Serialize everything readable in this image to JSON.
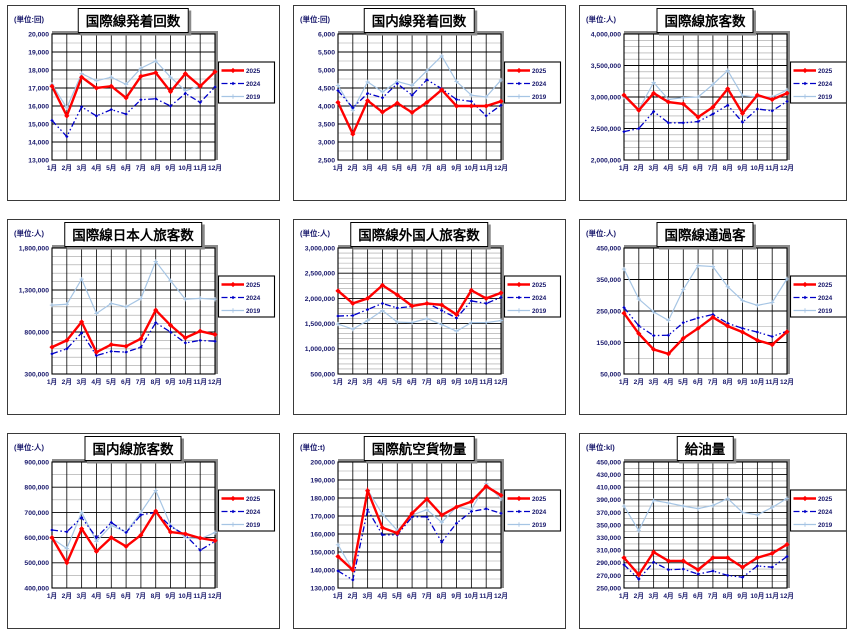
{
  "legend_labels": [
    "2025",
    "2024",
    "2019"
  ],
  "series_styles": {
    "2025": {
      "color": "#ff0000",
      "dash": "",
      "width": 2.4,
      "marker": "diamond"
    },
    "2024": {
      "color": "#0000c8",
      "dash": "6 2.5 1.5 2.5 1.5 2.5",
      "width": 1.3,
      "marker": "diamond-small"
    },
    "2019": {
      "color": "#a6c5e4",
      "dash": "",
      "width": 1.2,
      "marker": "plus"
    }
  },
  "grid_colors": {
    "major": "#000000",
    "minor": "#a0a0a0",
    "frame_shadow": "#8c8c8c"
  },
  "text_colors": {
    "axis": "#17176b",
    "title": "#000000"
  },
  "chart_data": [
    {
      "type": "line",
      "title": "国際線発着回数",
      "unit_label": "(単位:回)",
      "ylim": [
        13000,
        20000
      ],
      "major_step": 1000,
      "minor_step": 500,
      "categories": [
        "1月",
        "2月",
        "3月",
        "4月",
        "5月",
        "6月",
        "7月",
        "8月",
        "9月",
        "10月",
        "11月",
        "12月"
      ],
      "series": [
        {
          "name": "2025",
          "values": [
            17100,
            15450,
            17600,
            17000,
            17100,
            16450,
            17650,
            17850,
            16800,
            17800,
            17100,
            17900
          ]
        },
        {
          "name": "2024",
          "values": [
            15200,
            14300,
            15950,
            15450,
            15800,
            15550,
            16350,
            16400,
            16000,
            16700,
            16200,
            17050
          ]
        },
        {
          "name": "2019",
          "values": [
            17200,
            15900,
            17800,
            17400,
            17600,
            17200,
            18100,
            18500,
            17600,
            16850,
            17100,
            17900
          ]
        }
      ]
    },
    {
      "type": "line",
      "title": "国内線発着回数",
      "unit_label": "(単位:回)",
      "ylim": [
        2500,
        6000
      ],
      "major_step": 500,
      "minor_step": 250,
      "categories": [
        "1月",
        "2月",
        "3月",
        "4月",
        "5月",
        "6月",
        "7月",
        "8月",
        "9月",
        "10月",
        "11月",
        "12月"
      ],
      "series": [
        {
          "name": "2025",
          "values": [
            4100,
            3220,
            4150,
            3830,
            4080,
            3820,
            4100,
            4450,
            4000,
            4000,
            4000,
            4130
          ]
        },
        {
          "name": "2024",
          "values": [
            4430,
            3950,
            4350,
            4230,
            4620,
            4300,
            4730,
            4480,
            4180,
            4130,
            3730,
            4020
          ]
        },
        {
          "name": "2019",
          "values": [
            4570,
            3880,
            4670,
            4390,
            4680,
            4570,
            4980,
            5390,
            4680,
            4300,
            4250,
            4720
          ]
        }
      ]
    },
    {
      "type": "line",
      "title": "国際線旅客数",
      "unit_label": "(単位:人)",
      "ylim": [
        2000000,
        4000000
      ],
      "major_step": 500000,
      "minor_step": 100000,
      "categories": [
        "1月",
        "2月",
        "3月",
        "4月",
        "5月",
        "6月",
        "7月",
        "8月",
        "9月",
        "10月",
        "11月",
        "12月"
      ],
      "series": [
        {
          "name": "2025",
          "values": [
            3030000,
            2790000,
            3060000,
            2920000,
            2890000,
            2680000,
            2840000,
            3130000,
            2740000,
            3030000,
            2960000,
            3060000
          ]
        },
        {
          "name": "2024",
          "values": [
            2450000,
            2500000,
            2770000,
            2590000,
            2590000,
            2610000,
            2730000,
            2870000,
            2600000,
            2810000,
            2780000,
            2930000
          ]
        },
        {
          "name": "2019",
          "values": [
            3000000,
            2800000,
            3230000,
            2960000,
            2990000,
            3000000,
            3200000,
            3420000,
            3020000,
            3000000,
            3000000,
            3110000
          ]
        }
      ]
    },
    {
      "type": "line",
      "title": "国際線日本人旅客数",
      "unit_label": "(単位:人)",
      "ylim": [
        300000,
        1800000
      ],
      "major_step": 500000,
      "minor_step": 100000,
      "categories": [
        "1月",
        "2月",
        "3月",
        "4月",
        "5月",
        "6月",
        "7月",
        "8月",
        "9月",
        "10月",
        "11月",
        "12月"
      ],
      "series": [
        {
          "name": "2025",
          "values": [
            620000,
            700000,
            920000,
            560000,
            650000,
            630000,
            720000,
            1060000,
            880000,
            730000,
            810000,
            770000
          ]
        },
        {
          "name": "2024",
          "values": [
            540000,
            600000,
            790000,
            520000,
            570000,
            560000,
            620000,
            910000,
            800000,
            670000,
            700000,
            690000
          ]
        },
        {
          "name": "2019",
          "values": [
            1120000,
            1130000,
            1430000,
            1020000,
            1140000,
            1100000,
            1200000,
            1640000,
            1410000,
            1190000,
            1200000,
            1190000
          ]
        }
      ]
    },
    {
      "type": "line",
      "title": "国際線外国人旅客数",
      "unit_label": "(単位:人)",
      "ylim": [
        500000,
        3000000
      ],
      "major_step": 500000,
      "minor_step": 100000,
      "categories": [
        "1月",
        "2月",
        "3月",
        "4月",
        "5月",
        "6月",
        "7月",
        "8月",
        "9月",
        "10月",
        "11月",
        "12月"
      ],
      "series": [
        {
          "name": "2025",
          "values": [
            2150000,
            1900000,
            2000000,
            2260000,
            2070000,
            1850000,
            1900000,
            1870000,
            1680000,
            2160000,
            2000000,
            2110000
          ]
        },
        {
          "name": "2024",
          "values": [
            1650000,
            1660000,
            1780000,
            1900000,
            1810000,
            1840000,
            1910000,
            1760000,
            1610000,
            1950000,
            1900000,
            2020000
          ]
        },
        {
          "name": "2019",
          "values": [
            1490000,
            1390000,
            1560000,
            1760000,
            1530000,
            1520000,
            1600000,
            1480000,
            1350000,
            1520000,
            1520000,
            1560000
          ]
        }
      ]
    },
    {
      "type": "line",
      "title": "国際線通過客",
      "unit_label": "(単位:人)",
      "ylim": [
        50000,
        450000
      ],
      "major_step": 100000,
      "minor_step": 50000,
      "categories": [
        "1月",
        "2月",
        "3月",
        "4月",
        "5月",
        "6月",
        "7月",
        "8月",
        "9月",
        "10月",
        "11月",
        "12月"
      ],
      "series": [
        {
          "name": "2025",
          "values": [
            243000,
            178000,
            128000,
            114000,
            163000,
            195000,
            230000,
            202000,
            183000,
            157000,
            143000,
            184000
          ]
        },
        {
          "name": "2024",
          "values": [
            261000,
            203000,
            172000,
            173000,
            213000,
            228000,
            239000,
            211000,
            195000,
            183000,
            169000,
            186000
          ]
        },
        {
          "name": "2019",
          "values": [
            383000,
            288000,
            247000,
            220000,
            318000,
            394000,
            391000,
            327000,
            283000,
            268000,
            277000,
            352000
          ]
        }
      ]
    },
    {
      "type": "line",
      "title": "国内線旅客数",
      "unit_label": "(単位:人)",
      "ylim": [
        400000,
        900000
      ],
      "major_step": 100000,
      "minor_step": 50000,
      "categories": [
        "1月",
        "2月",
        "3月",
        "4月",
        "5月",
        "6月",
        "7月",
        "8月",
        "9月",
        "10月",
        "11月",
        "12月"
      ],
      "series": [
        {
          "name": "2025",
          "values": [
            600000,
            500000,
            635000,
            545000,
            600000,
            565000,
            610000,
            705000,
            622000,
            615000,
            598000,
            588000
          ]
        },
        {
          "name": "2024",
          "values": [
            630000,
            623000,
            680000,
            600000,
            660000,
            620000,
            690000,
            700000,
            645000,
            610000,
            550000,
            585000
          ]
        },
        {
          "name": "2019",
          "values": [
            597000,
            557000,
            700000,
            585000,
            648000,
            622000,
            700000,
            787000,
            650000,
            600000,
            595000,
            620000
          ]
        }
      ]
    },
    {
      "type": "line",
      "title": "国際航空貨物量",
      "unit_label": "(単位:t)",
      "ylim": [
        130000,
        200000
      ],
      "major_step": 10000,
      "minor_step": 5000,
      "categories": [
        "1月",
        "2月",
        "3月",
        "4月",
        "5月",
        "6月",
        "7月",
        "8月",
        "9月",
        "10月",
        "11月",
        "12月"
      ],
      "series": [
        {
          "name": "2025",
          "values": [
            147500,
            140000,
            184000,
            163500,
            160500,
            171500,
            179500,
            170500,
            175000,
            178000,
            186500,
            181500
          ]
        },
        {
          "name": "2024",
          "values": [
            139500,
            134500,
            173500,
            159500,
            159500,
            169500,
            169500,
            155500,
            166000,
            172500,
            174000,
            171500
          ]
        },
        {
          "name": "2019",
          "values": [
            154000,
            140000,
            184500,
            171000,
            162000,
            170500,
            173500,
            166500,
            175000,
            173500,
            188000,
            179500
          ]
        }
      ]
    },
    {
      "type": "line",
      "title": "給油量",
      "unit_label": "(単位:kl)",
      "ylim": [
        250000,
        450000
      ],
      "major_step": 20000,
      "minor_step": 10000,
      "categories": [
        "1月",
        "2月",
        "3月",
        "4月",
        "5月",
        "6月",
        "7月",
        "8月",
        "9月",
        "10月",
        "11月",
        "12月"
      ],
      "series": [
        {
          "name": "2025",
          "values": [
            298000,
            271000,
            307000,
            293000,
            293000,
            279000,
            298000,
            298000,
            283000,
            298000,
            305000,
            319000
          ]
        },
        {
          "name": "2024",
          "values": [
            287000,
            264000,
            291000,
            279000,
            280000,
            272000,
            277000,
            270000,
            267000,
            285000,
            283000,
            300000
          ]
        },
        {
          "name": "2019",
          "values": [
            380000,
            341000,
            389000,
            385000,
            380000,
            376000,
            381000,
            392000,
            370000,
            366000,
            378000,
            392000
          ]
        }
      ]
    }
  ]
}
